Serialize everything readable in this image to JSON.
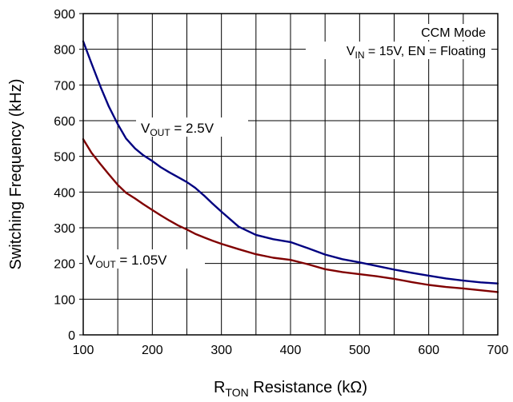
{
  "chart_data": {
    "type": "line",
    "title": "",
    "xlabel": {
      "main": "R",
      "sub": "TON",
      "rest": " Resistance (kΩ)"
    },
    "ylabel": "Switching Frequency (kHz)",
    "xlim": [
      100,
      700
    ],
    "ylim": [
      0,
      900
    ],
    "xticks": [
      100,
      200,
      300,
      400,
      500,
      600,
      700
    ],
    "yticks": [
      0,
      100,
      200,
      300,
      400,
      500,
      600,
      700,
      800,
      900
    ],
    "x_minor_step": 50,
    "grid": true,
    "annotations": {
      "mode": "CCM Mode",
      "conditions": {
        "v": "V",
        "sub": "IN",
        "rest": " = 15V, EN = Floating"
      }
    },
    "series": [
      {
        "name": "VOUT = 2.5V",
        "label": {
          "v": "V",
          "sub": "OUT",
          "rest": " = 2.5V"
        },
        "color": "#000080",
        "x": [
          100,
          112,
          125,
          137,
          150,
          162,
          175,
          187,
          200,
          212,
          225,
          237,
          250,
          262,
          275,
          287,
          300,
          325,
          350,
          375,
          400,
          425,
          450,
          475,
          500,
          525,
          550,
          575,
          600,
          625,
          650,
          675,
          700
        ],
        "y": [
          822,
          760,
          695,
          640,
          590,
          550,
          522,
          503,
          487,
          470,
          455,
          442,
          428,
          412,
          390,
          368,
          345,
          303,
          280,
          268,
          260,
          243,
          225,
          212,
          203,
          193,
          183,
          174,
          166,
          158,
          152,
          147,
          144
        ]
      },
      {
        "name": "VOUT = 1.05V",
        "label": {
          "v": "V",
          "sub": "OUT",
          "rest": " = 1.05V"
        },
        "color": "#800000",
        "x": [
          100,
          112,
          125,
          137,
          150,
          162,
          175,
          187,
          200,
          212,
          225,
          237,
          250,
          262,
          275,
          287,
          300,
          325,
          350,
          375,
          400,
          425,
          450,
          475,
          500,
          525,
          550,
          575,
          600,
          625,
          650,
          675,
          700
        ],
        "y": [
          548,
          510,
          478,
          450,
          420,
          398,
          382,
          366,
          350,
          335,
          320,
          307,
          295,
          283,
          273,
          264,
          255,
          240,
          226,
          216,
          210,
          198,
          184,
          176,
          170,
          164,
          157,
          148,
          140,
          134,
          130,
          125,
          120
        ]
      }
    ]
  }
}
